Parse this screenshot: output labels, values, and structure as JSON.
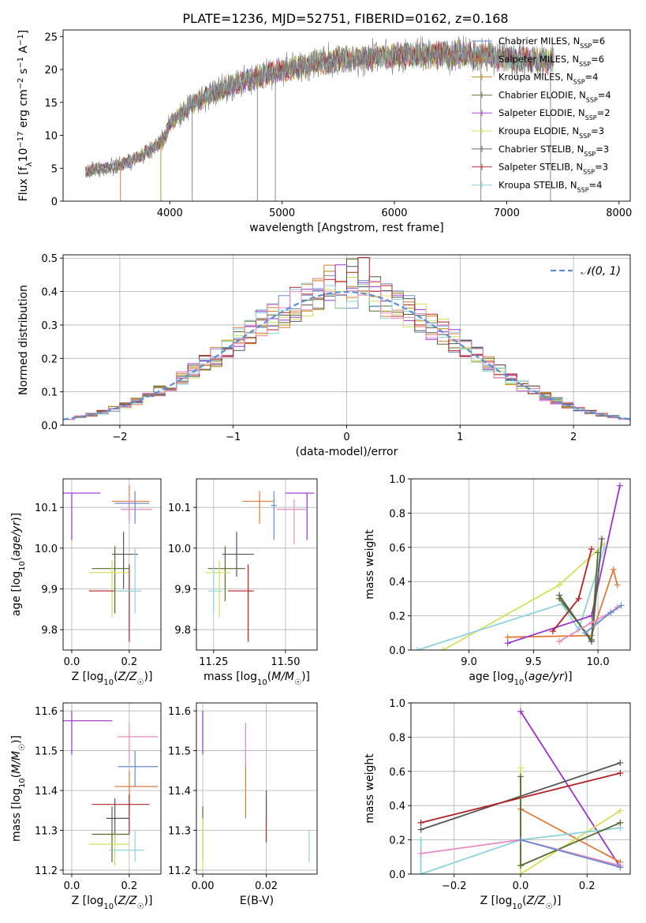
{
  "title": "PLATE=1236, MJD=52751, FIBERID=0162, z=0.168",
  "colors": {
    "Chabrier MILES": "#6a8ac9",
    "Salpeter MILES": "#e07b39",
    "Kroupa MILES": "#b8860b",
    "Chabrier ELODIE": "#556b2f",
    "Salpeter ELODIE": "#9932cc",
    "Kroupa ELODIE": "#d4e157",
    "Chabrier STELIB": "#555555",
    "Salpeter STELIB": "#b22222",
    "Kroupa STELIB": "#8dd3dd",
    "pink": "#e78ac3",
    "gauss": "#5b8fd6"
  },
  "chart_data": [
    {
      "id": "spectrum",
      "type": "line",
      "xlabel": "wavelength [Angstrom, rest frame]",
      "ylabel": "Flux [f_λ 10^-17 erg cm^-2 s^-1 A^-1]",
      "xlim": [
        3050,
        8100
      ],
      "ylim": [
        0,
        26
      ],
      "xticks": [
        4000,
        5000,
        6000,
        7000,
        8000
      ],
      "yticks": [
        0,
        5,
        10,
        15,
        20,
        25
      ],
      "grid": false,
      "legend_placement": "right",
      "series": [
        {
          "name": "Chabrier MILES",
          "nssp": "6"
        },
        {
          "name": "Salpeter MILES",
          "nssp": "6"
        },
        {
          "name": "Kroupa MILES",
          "nssp": "4"
        },
        {
          "name": "Chabrier ELODIE",
          "nssp": "4"
        },
        {
          "name": "Salpeter ELODIE",
          "nssp": "2"
        },
        {
          "name": "Kroupa ELODIE",
          "nssp": "3"
        },
        {
          "name": "Chabrier STELIB",
          "nssp": "3"
        },
        {
          "name": "Salpeter STELIB",
          "nssp": "3"
        },
        {
          "name": "Kroupa STELIB",
          "nssp": "4"
        }
      ],
      "continuum": {
        "x": [
          3250,
          3500,
          3700,
          3850,
          3950,
          4000,
          4200,
          4400,
          4700,
          5000,
          5300,
          5600,
          6000,
          6400,
          6800,
          7100,
          7400
        ],
        "y": [
          4.6,
          5.2,
          6.5,
          8.0,
          9.5,
          11.8,
          14.8,
          16.5,
          18.5,
          19.8,
          21.0,
          21.6,
          22.0,
          22.3,
          22.1,
          21.6,
          21.2
        ]
      },
      "drops": [
        3560,
        3920,
        4200,
        4780,
        4940,
        6770,
        7390
      ]
    },
    {
      "id": "residuals",
      "type": "bar",
      "xlabel": "(data-model)/error",
      "ylabel": "Normed distribution",
      "xlim": [
        -2.5,
        2.5
      ],
      "ylim": [
        0,
        0.51
      ],
      "xticks": [
        -2,
        -1,
        0,
        1,
        2
      ],
      "yticks": [
        0.0,
        0.1,
        0.2,
        0.3,
        0.4,
        0.5
      ],
      "grid": true,
      "legend": "𝒩(0, 1)",
      "legend_placement": "top-right"
    },
    {
      "id": "age_vs_Z",
      "type": "scatter",
      "xlabel": "Z [log10(Z/Z☉)]",
      "ylabel": "age [log10(age/yr)]",
      "xlim": [
        -0.03,
        0.31
      ],
      "ylim": [
        9.75,
        10.17
      ],
      "xticks": [
        0.0,
        0.2
      ],
      "yticks": [
        9.8,
        9.9,
        10.0,
        10.1
      ],
      "points": [
        {
          "c": "Salpeter ELODIE",
          "x": 0.0,
          "y": 10.135,
          "xl": -0.03,
          "xh": 0.1,
          "yl": 10.02,
          "yh": 10.135
        },
        {
          "c": "Salpeter MILES",
          "x": 0.2,
          "y": 10.115,
          "xl": 0.14,
          "xh": 0.27,
          "yl": 10.07,
          "yh": 10.155
        },
        {
          "c": "pink",
          "x": 0.2,
          "y": 10.095,
          "xl": 0.17,
          "xh": 0.28,
          "yl": 10.06,
          "yh": 10.13
        },
        {
          "c": "Chabrier MILES",
          "x": 0.22,
          "y": 10.11,
          "xl": 0.15,
          "xh": 0.27,
          "yl": 10.06,
          "yh": 10.14
        },
        {
          "c": "Chabrier STELIB",
          "x": 0.18,
          "y": 9.985,
          "xl": 0.14,
          "xh": 0.23,
          "yl": 9.9,
          "yh": 10.04
        },
        {
          "c": "Chabrier ELODIE",
          "x": 0.15,
          "y": 9.95,
          "xl": 0.07,
          "xh": 0.2,
          "yl": 9.84,
          "yh": 10.005
        },
        {
          "c": "Kroupa ELODIE",
          "x": 0.14,
          "y": 9.94,
          "xl": 0.06,
          "xh": 0.2,
          "yl": 9.83,
          "yh": 9.97
        },
        {
          "c": "Salpeter STELIB",
          "x": 0.2,
          "y": 9.895,
          "xl": 0.06,
          "xh": 0.24,
          "yl": 9.77,
          "yh": 9.96
        },
        {
          "c": "Kroupa STELIB",
          "x": 0.22,
          "y": 9.895,
          "xl": 0.15,
          "xh": 0.24,
          "yl": 9.84,
          "yh": 10.0
        }
      ]
    },
    {
      "id": "age_vs_mass",
      "type": "scatter",
      "xlabel": "mass [log10(M/M☉)]",
      "ylabel": "",
      "xlim": [
        11.19,
        11.61
      ],
      "ylim": [
        9.75,
        10.17
      ],
      "xticks": [
        11.25,
        11.5
      ],
      "yticks": [
        9.8,
        9.9,
        10.0,
        10.1
      ],
      "points": [
        {
          "c": "Salpeter ELODIE",
          "x": 11.575,
          "y": 10.135,
          "xl": 11.5,
          "xh": 11.6,
          "yl": 10.02,
          "yh": 10.135
        },
        {
          "c": "Salpeter MILES",
          "x": 11.41,
          "y": 10.115,
          "xl": 11.35,
          "xh": 11.46,
          "yl": 10.06,
          "yh": 10.14
        },
        {
          "c": "pink",
          "x": 11.53,
          "y": 10.095,
          "xl": 11.47,
          "xh": 11.57,
          "yl": 10.01,
          "yh": 10.12
        },
        {
          "c": "Chabrier MILES",
          "x": 11.46,
          "y": 10.105,
          "xl": 11.45,
          "xh": 11.47,
          "yl": 10.02,
          "yh": 10.14
        },
        {
          "c": "Chabrier STELIB",
          "x": 11.33,
          "y": 9.985,
          "xl": 11.28,
          "xh": 11.39,
          "yl": 9.93,
          "yh": 10.04
        },
        {
          "c": "Chabrier ELODIE",
          "x": 11.29,
          "y": 9.95,
          "xl": 11.23,
          "xh": 11.36,
          "yl": 9.87,
          "yh": 10.005
        },
        {
          "c": "Kroupa ELODIE",
          "x": 11.27,
          "y": 9.94,
          "xl": 11.22,
          "xh": 11.31,
          "yl": 9.83,
          "yh": 9.97
        },
        {
          "c": "Salpeter STELIB",
          "x": 11.37,
          "y": 9.895,
          "xl": 11.3,
          "xh": 11.39,
          "yl": 9.77,
          "yh": 9.96
        },
        {
          "c": "Kroupa STELIB",
          "x": 11.25,
          "y": 9.895,
          "xl": 11.23,
          "xh": 11.28,
          "yl": 9.84,
          "yh": 9.96
        }
      ]
    },
    {
      "id": "mass_weight_vs_age",
      "type": "line",
      "xlabel": "age [log10(age/yr)]",
      "ylabel": "mass weight",
      "xlim": [
        8.55,
        10.25
      ],
      "ylim": [
        0,
        1.0
      ],
      "xticks": [
        9.0,
        9.5,
        10.0
      ],
      "yticks": [
        0.0,
        0.2,
        0.4,
        0.6,
        0.8,
        1.0
      ],
      "grid": true,
      "series": [
        {
          "c": "Kroupa ELODIE",
          "x": [
            8.8,
            9.7,
            10.05
          ],
          "y": [
            0.0,
            0.38,
            0.62
          ]
        },
        {
          "c": "Kroupa STELIB",
          "x": [
            8.6,
            9.72,
            9.85,
            10.05
          ],
          "y": [
            0.0,
            0.27,
            0.12,
            0.6
          ]
        },
        {
          "c": "Salpeter MILES",
          "x": [
            9.3,
            9.95,
            10.12,
            10.15
          ],
          "y": [
            0.075,
            0.085,
            0.47,
            0.38
          ]
        },
        {
          "c": "Salpeter ELODIE",
          "x": [
            9.3,
            9.95,
            10.17
          ],
          "y": [
            0.04,
            0.2,
            0.96
          ]
        },
        {
          "c": "Salpeter STELIB",
          "x": [
            9.65,
            9.85,
            9.95
          ],
          "y": [
            0.11,
            0.3,
            0.59
          ]
        },
        {
          "c": "Chabrier STELIB",
          "x": [
            9.7,
            9.95,
            10.03
          ],
          "y": [
            0.32,
            0.05,
            0.65
          ]
        },
        {
          "c": "Chabrier ELODIE",
          "x": [
            9.7,
            9.95,
            10.0
          ],
          "y": [
            0.3,
            0.06,
            0.57
          ]
        },
        {
          "c": "pink",
          "x": [
            9.7,
            9.95,
            10.1,
            10.15
          ],
          "y": [
            0.05,
            0.16,
            0.22,
            0.25
          ]
        },
        {
          "c": "Chabrier MILES",
          "x": [
            9.9,
            10.1,
            10.18
          ],
          "y": [
            0.1,
            0.22,
            0.26
          ]
        }
      ]
    },
    {
      "id": "mass_vs_Z",
      "type": "scatter",
      "xlabel": "Z [log10(Z/Z☉)]",
      "ylabel": "mass [log10(M/M☉)]",
      "xlim": [
        -0.03,
        0.31
      ],
      "ylim": [
        11.19,
        11.62
      ],
      "xticks": [
        0.0,
        0.2
      ],
      "yticks": [
        11.2,
        11.3,
        11.4,
        11.5,
        11.6
      ],
      "points": [
        {
          "c": "Salpeter ELODIE",
          "x": 0.0,
          "y": 11.575,
          "xl": -0.03,
          "xh": 0.14,
          "yl": 11.49,
          "yh": 11.6
        },
        {
          "c": "pink",
          "x": 0.2,
          "y": 11.535,
          "xl": 0.16,
          "xh": 0.3,
          "yl": 11.47,
          "yh": 11.57
        },
        {
          "c": "Chabrier MILES",
          "x": 0.22,
          "y": 11.46,
          "xl": 0.16,
          "xh": 0.3,
          "yl": 11.41,
          "yh": 11.5
        },
        {
          "c": "Salpeter MILES",
          "x": 0.2,
          "y": 11.41,
          "xl": 0.15,
          "xh": 0.3,
          "yl": 11.34,
          "yh": 11.45
        },
        {
          "c": "Salpeter STELIB",
          "x": 0.2,
          "y": 11.365,
          "xl": 0.07,
          "xh": 0.27,
          "yl": 11.29,
          "yh": 11.39
        },
        {
          "c": "Chabrier STELIB",
          "x": 0.15,
          "y": 11.33,
          "xl": 0.12,
          "xh": 0.2,
          "yl": 11.27,
          "yh": 11.38
        },
        {
          "c": "Chabrier ELODIE",
          "x": 0.14,
          "y": 11.29,
          "xl": 0.07,
          "xh": 0.2,
          "yl": 11.22,
          "yh": 11.36
        },
        {
          "c": "Kroupa ELODIE",
          "x": 0.15,
          "y": 11.265,
          "xl": 0.06,
          "xh": 0.2,
          "yl": 11.21,
          "yh": 11.29
        },
        {
          "c": "Kroupa STELIB",
          "x": 0.22,
          "y": 11.25,
          "xl": 0.13,
          "xh": 0.25,
          "yl": 11.22,
          "yh": 11.3
        }
      ]
    },
    {
      "id": "mass_vs_ebv",
      "type": "scatter",
      "xlabel": "E(B-V)",
      "ylabel": "",
      "xlim": [
        -0.002,
        0.036
      ],
      "ylim": [
        11.19,
        11.62
      ],
      "xticks": [
        0.0,
        0.02
      ],
      "yticks": [
        11.2,
        11.3,
        11.4,
        11.5,
        11.6
      ],
      "points": [
        {
          "c": "Salpeter ELODIE",
          "x": 0.0,
          "y": 11.575,
          "xl": 0.0,
          "xh": 0.0,
          "yl": 11.49,
          "yh": 11.6
        },
        {
          "c": "Chabrier ELODIE",
          "x": 0.0,
          "y": 11.33,
          "xl": 0.0,
          "xh": 0.0,
          "yl": 11.23,
          "yh": 11.36
        },
        {
          "c": "Kroupa ELODIE",
          "x": 0.0,
          "y": 11.265,
          "xl": 0.0,
          "xh": 0.0,
          "yl": 11.2,
          "yh": 11.33
        },
        {
          "c": "pink",
          "x": 0.0135,
          "y": 11.535,
          "xl": 0.0135,
          "xh": 0.0135,
          "yl": 11.45,
          "yh": 11.57
        },
        {
          "c": "Salpeter MILES",
          "x": 0.0135,
          "y": 11.41,
          "xl": 0.0135,
          "xh": 0.0135,
          "yl": 11.33,
          "yh": 11.46
        },
        {
          "c": "Salpeter STELIB",
          "x": 0.02,
          "y": 11.34,
          "xl": 0.02,
          "xh": 0.02,
          "yl": 11.27,
          "yh": 11.38
        },
        {
          "c": "Chabrier STELIB",
          "x": 0.02,
          "y": 11.375,
          "xl": 0.02,
          "xh": 0.02,
          "yl": 11.33,
          "yh": 11.4
        },
        {
          "c": "Kroupa STELIB",
          "x": 0.0335,
          "y": 11.25,
          "xl": 0.0335,
          "xh": 0.0335,
          "yl": 11.22,
          "yh": 11.3
        }
      ]
    },
    {
      "id": "mass_weight_vs_Z",
      "type": "line",
      "xlabel": "Z [log10(Z/Z☉)]",
      "ylabel": "mass weight",
      "xlim": [
        -0.33,
        0.33
      ],
      "ylim": [
        0,
        1.0
      ],
      "xticks": [
        -0.2,
        0.0,
        0.2
      ],
      "yticks": [
        0.0,
        0.2,
        0.4,
        0.6,
        0.8,
        1.0
      ],
      "grid": true,
      "series": [
        {
          "c": "Salpeter ELODIE",
          "x": [
            0.0,
            0.3
          ],
          "y": [
            0.95,
            0.04
          ]
        },
        {
          "c": "Chabrier STELIB",
          "x": [
            -0.3,
            0.3
          ],
          "y": [
            0.26,
            0.65
          ]
        },
        {
          "c": "Salpeter STELIB",
          "x": [
            -0.3,
            0.3
          ],
          "y": [
            0.3,
            0.59
          ]
        },
        {
          "c": "Salpeter MILES",
          "x": [
            0.0,
            0.3
          ],
          "y": [
            0.38,
            0.07
          ]
        },
        {
          "c": "Kroupa ELODIE",
          "x": [
            0.0,
            0.0,
            0.3
          ],
          "y": [
            0.62,
            0.0,
            0.37
          ]
        },
        {
          "c": "Kroupa STELIB",
          "x": [
            -0.3,
            -0.3,
            0.0,
            0.3
          ],
          "y": [
            0.2,
            0.0,
            0.2,
            0.27
          ]
        },
        {
          "c": "Chabrier ELODIE",
          "x": [
            0.0,
            0.0,
            0.3
          ],
          "y": [
            0.57,
            0.05,
            0.3
          ]
        },
        {
          "c": "pink",
          "x": [
            -0.3,
            0.0,
            0.3
          ],
          "y": [
            0.12,
            0.2,
            0.05
          ]
        },
        {
          "c": "Chabrier MILES",
          "x": [
            0.0,
            0.3
          ],
          "y": [
            0.2,
            0.04
          ]
        }
      ]
    }
  ]
}
